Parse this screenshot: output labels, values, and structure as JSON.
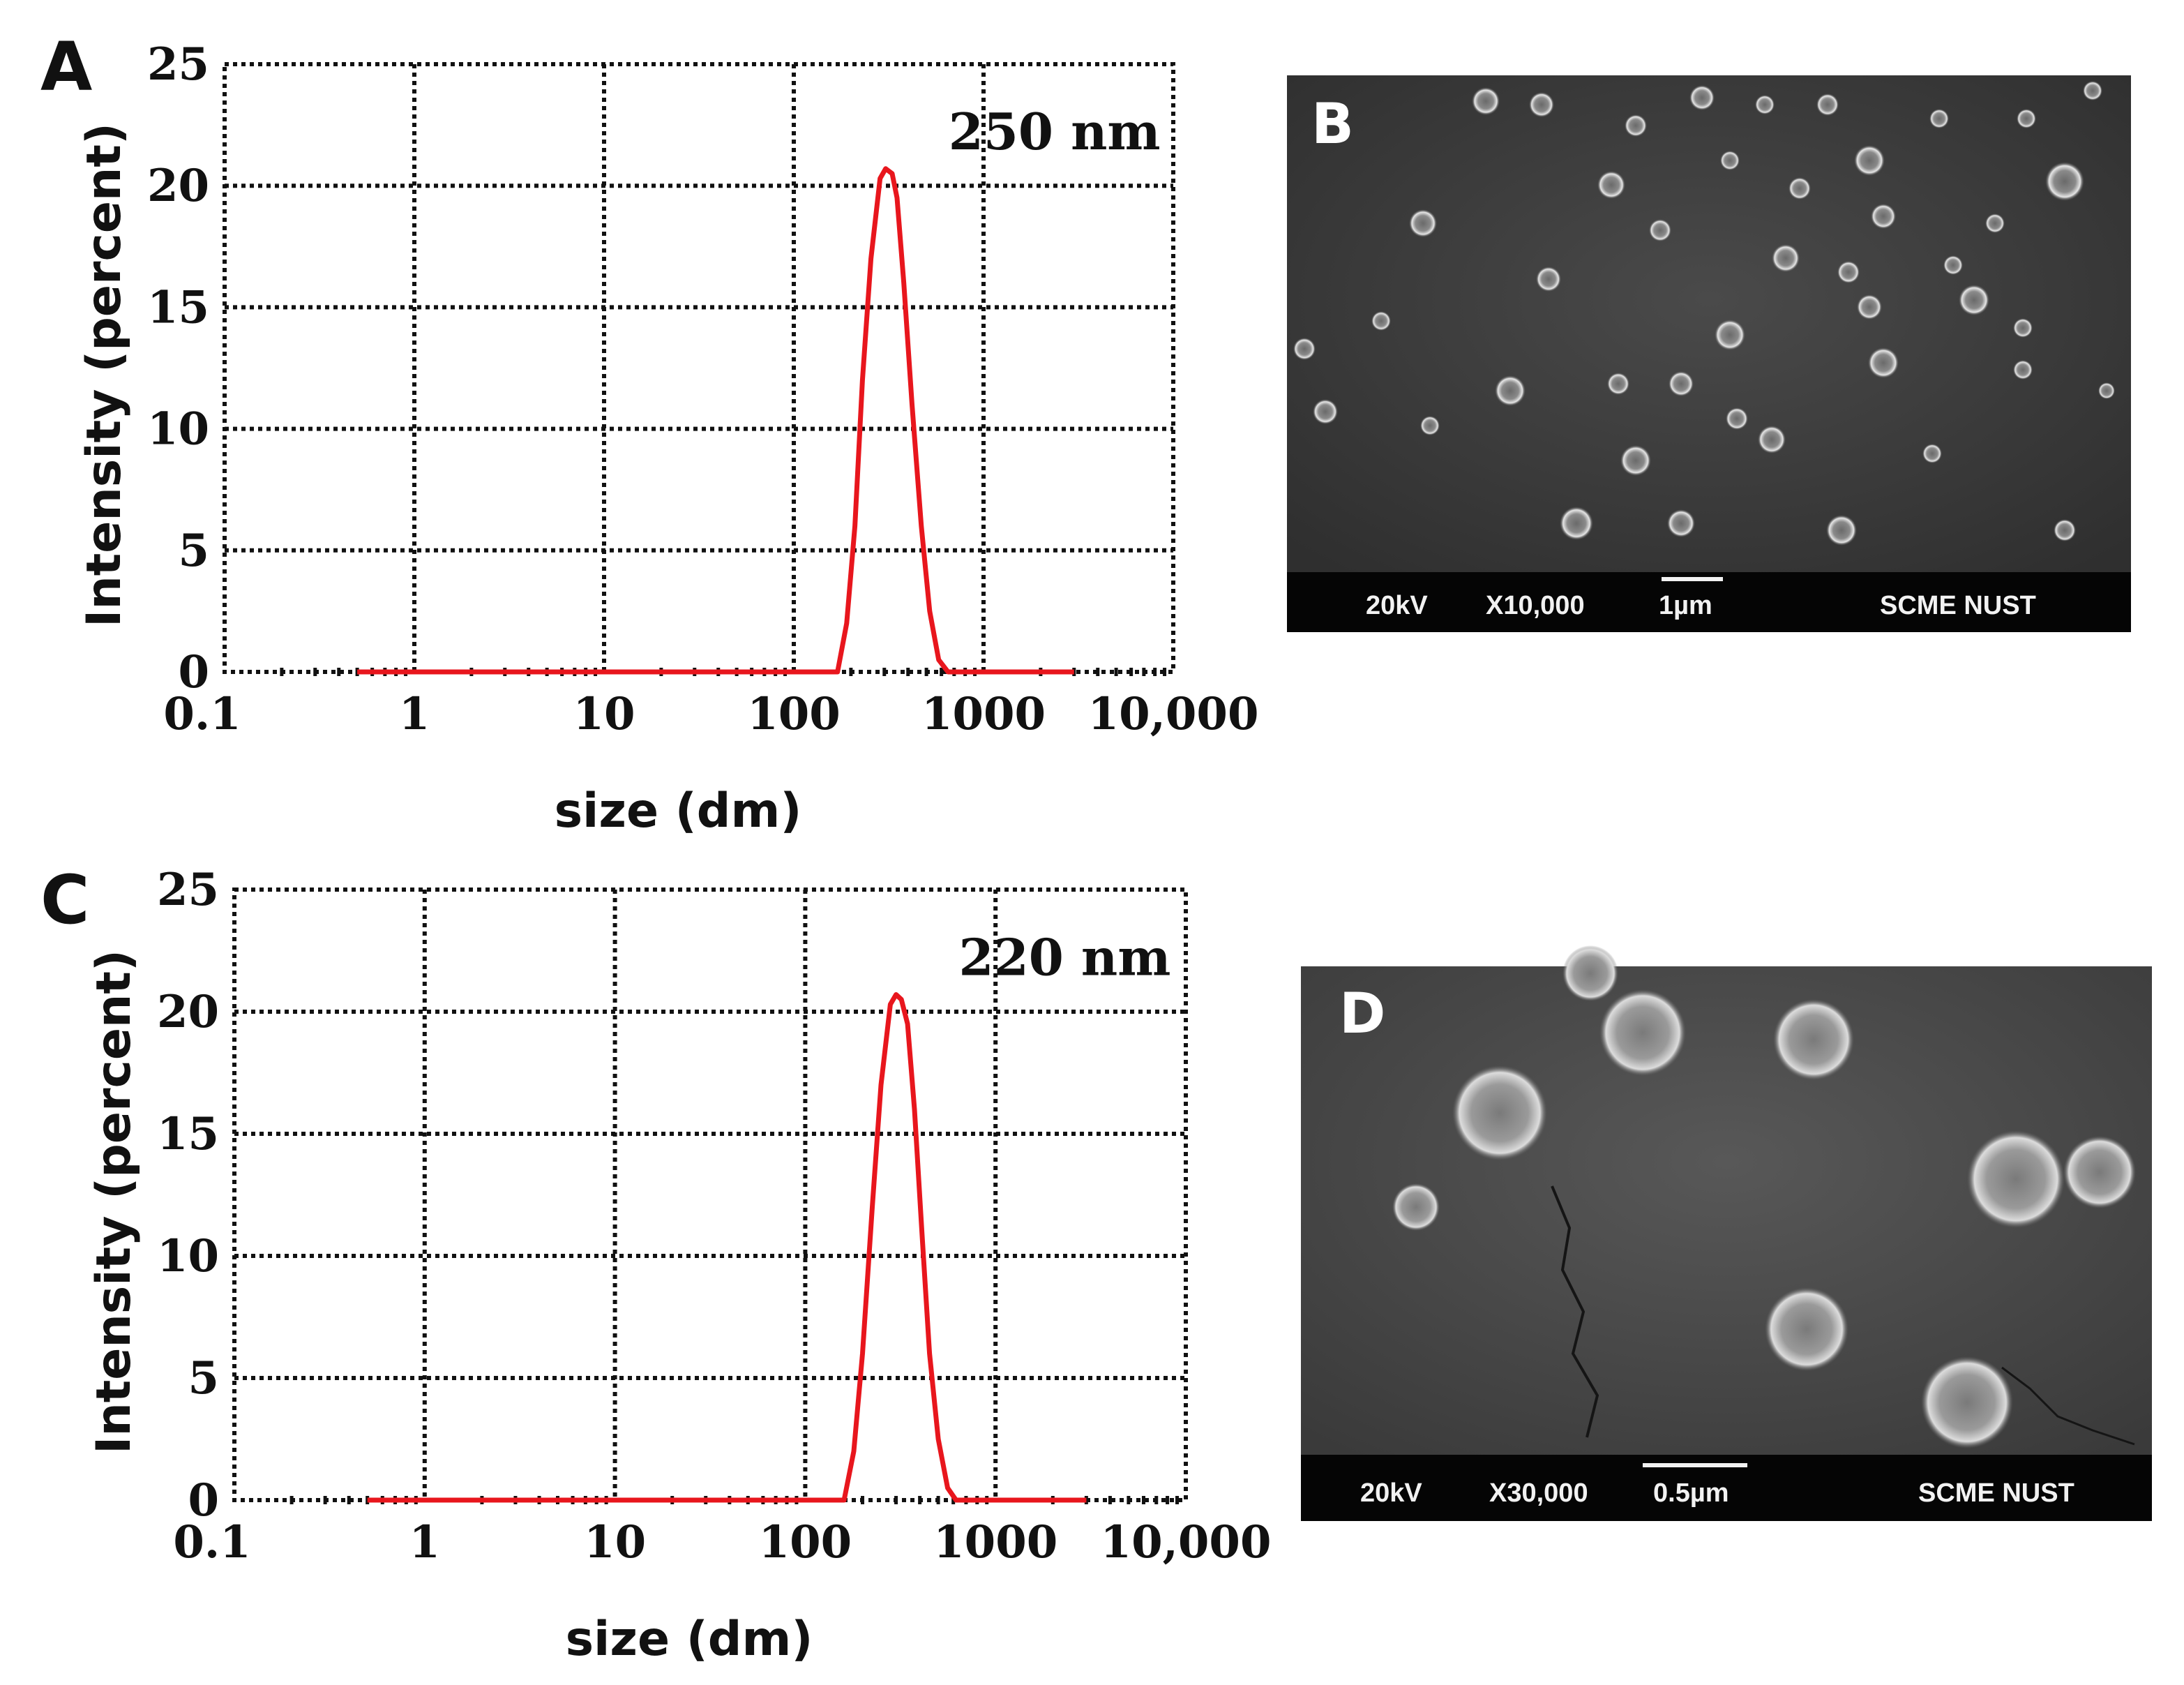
{
  "chart_data": [
    {
      "panel": "A",
      "type": "line",
      "x_scale": "log",
      "xlabel": "size (dm)",
      "ylabel": "Intensity (percent)",
      "xlim": [
        0.1,
        10000
      ],
      "ylim": [
        0,
        25
      ],
      "x_ticks": [
        "0.1",
        "1",
        "10",
        "100",
        "1000",
        "10,000"
      ],
      "y_ticks": [
        "0",
        "5",
        "10",
        "15",
        "20",
        "25"
      ],
      "grid": true,
      "annotation": "250 nm",
      "color": "#e8161d",
      "x": [
        0.5,
        100,
        170,
        190,
        210,
        230,
        255,
        285,
        305,
        330,
        350,
        380,
        420,
        470,
        520,
        580,
        650,
        3000
      ],
      "y": [
        0,
        0,
        0,
        2,
        6,
        12,
        17,
        20.3,
        20.7,
        20.5,
        19.5,
        16,
        11,
        6,
        2.5,
        0.5,
        0,
        0
      ]
    },
    {
      "panel": "C",
      "type": "line",
      "x_scale": "log",
      "xlabel": "size (dm)",
      "ylabel": "Intensity (percent)",
      "xlim": [
        0.1,
        10000
      ],
      "ylim": [
        0,
        25
      ],
      "x_ticks": [
        "0.1",
        "1",
        "10",
        "100",
        "1000",
        "10,000"
      ],
      "y_ticks": [
        "0",
        "5",
        "10",
        "15",
        "20",
        "25"
      ],
      "grid": true,
      "annotation": "220 nm",
      "color": "#e8161d",
      "x": [
        0.5,
        100,
        160,
        180,
        200,
        225,
        250,
        280,
        300,
        320,
        345,
        375,
        410,
        450,
        500,
        560,
        620,
        3000
      ],
      "y": [
        0,
        0,
        0,
        2,
        6,
        12,
        17,
        20.3,
        20.7,
        20.5,
        19.5,
        16,
        11,
        6,
        2.5,
        0.5,
        0,
        0
      ]
    }
  ],
  "panels": {
    "a_letter": "A",
    "b_letter": "B",
    "c_letter": "C",
    "d_letter": "D"
  },
  "sem_b": {
    "voltage": "20kV",
    "magnification": "X10,000",
    "scale": "1µm",
    "institution": "SCME  NUST"
  },
  "sem_d": {
    "voltage": "20kV",
    "magnification": "X30,000",
    "scale": "0.5µm",
    "institution": "SCME  NUST"
  }
}
